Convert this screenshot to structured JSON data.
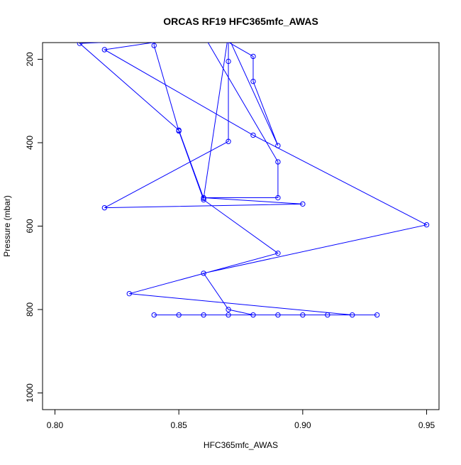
{
  "chart_data": {
    "type": "line",
    "title": "ORCAS RF19 HFC365mfc_AWAS",
    "xlabel": "HFC365mfc_AWAS",
    "ylabel": "Pressure (mbar)",
    "xlim": [
      0.795,
      0.955
    ],
    "ylim": [
      1040,
      160
    ],
    "y_reversed": true,
    "x_ticks": [
      0.8,
      0.85,
      0.9,
      0.95
    ],
    "x_tick_labels": [
      "0.80",
      "0.85",
      "0.90",
      "0.95"
    ],
    "y_ticks": [
      200,
      400,
      600,
      800,
      1000
    ],
    "y_tick_labels": [
      "200",
      "400",
      "600",
      "800",
      "1000"
    ],
    "grid": false,
    "legend": "none",
    "color": "#0000ff",
    "marker": "open-circle",
    "series": [
      {
        "points": [
          [
            0.88,
            140
          ],
          [
            0.86,
            125
          ],
          [
            0.88,
            193
          ],
          [
            0.88,
            253
          ],
          [
            0.89,
            407
          ],
          [
            0.87,
            147
          ],
          [
            0.81,
            162
          ],
          [
            0.85,
            370
          ],
          [
            0.86,
            533
          ],
          [
            0.87,
            140
          ],
          [
            0.87,
            205
          ],
          [
            0.87,
            397
          ],
          [
            0.82,
            556
          ],
          [
            0.9,
            547
          ],
          [
            0.86,
            532
          ],
          [
            0.89,
            532
          ],
          [
            0.89,
            446
          ],
          [
            0.86,
            142
          ],
          [
            0.82,
            177
          ],
          [
            0.88,
            382
          ],
          [
            0.95,
            597
          ],
          [
            0.86,
            713
          ],
          [
            0.87,
            800
          ],
          [
            0.88,
            813
          ],
          [
            0.93,
            813
          ],
          [
            0.85,
            813
          ],
          [
            0.84,
            813
          ],
          [
            0.86,
            813
          ],
          [
            0.87,
            813
          ],
          [
            0.89,
            813
          ],
          [
            0.9,
            813
          ],
          [
            0.91,
            813
          ],
          [
            0.92,
            813
          ],
          [
            0.83,
            762
          ],
          [
            0.89,
            665
          ],
          [
            0.86,
            537
          ],
          [
            0.85,
            372
          ],
          [
            0.84,
            167
          ],
          [
            0.84,
            130
          ]
        ]
      }
    ]
  }
}
